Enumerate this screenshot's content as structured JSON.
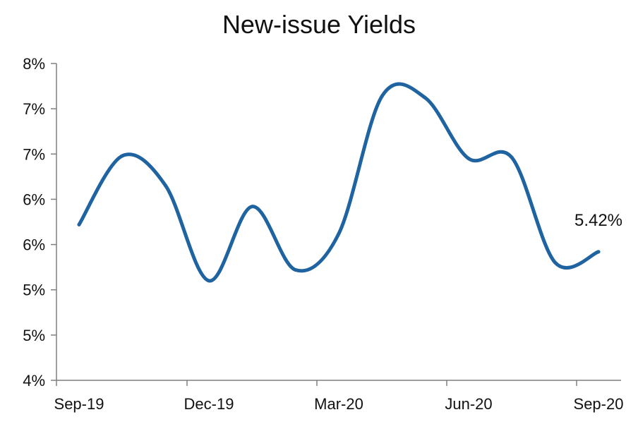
{
  "chart_data": {
    "type": "line",
    "title": "New-issue Yields",
    "xlabel": "",
    "ylabel": "",
    "x": [
      "Sep-19",
      "Oct-19",
      "Nov-19",
      "Dec-19",
      "Jan-20",
      "Feb-20",
      "Mar-20",
      "Apr-20",
      "May-20",
      "Jun-20",
      "Jul-20",
      "Aug-20",
      "Sep-20"
    ],
    "series": [
      {
        "values": [
          5.72,
          6.48,
          6.15,
          5.1,
          5.92,
          5.22,
          5.62,
          7.14,
          7.12,
          6.45,
          6.46,
          5.3,
          5.42
        ],
        "color": "#1f63a0"
      }
    ],
    "yticks": [
      {
        "value": 4.0,
        "label": "4%"
      },
      {
        "value": 4.5,
        "label": "5%"
      },
      {
        "value": 5.0,
        "label": "5%"
      },
      {
        "value": 5.5,
        "label": "6%"
      },
      {
        "value": 6.0,
        "label": "6%"
      },
      {
        "value": 6.5,
        "label": "7%"
      },
      {
        "value": 7.0,
        "label": "7%"
      },
      {
        "value": 7.5,
        "label": "8%"
      }
    ],
    "xticks": [
      {
        "index": 0,
        "label": "Sep-19"
      },
      {
        "index": 3,
        "label": "Dec-19"
      },
      {
        "index": 6,
        "label": "Mar-20"
      },
      {
        "index": 9,
        "label": "Jun-20"
      },
      {
        "index": 12,
        "label": "Sep-20"
      }
    ],
    "ylim": [
      4.0,
      7.5
    ],
    "annotation": {
      "index": 12,
      "text": "5.42%"
    },
    "grid": false,
    "legend": "none"
  }
}
